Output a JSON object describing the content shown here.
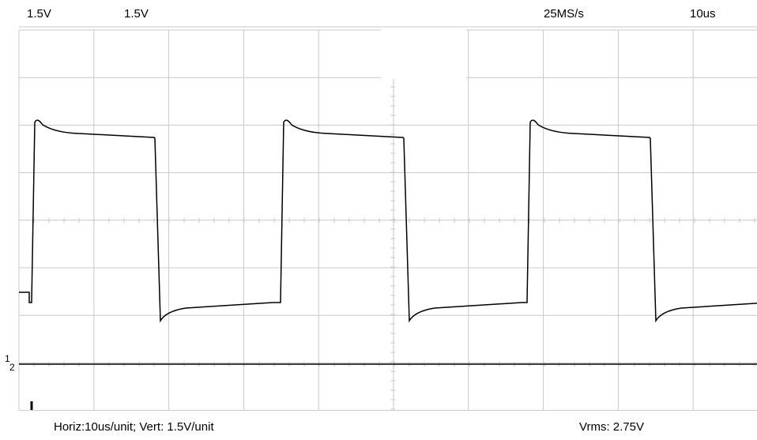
{
  "header": {
    "ch1_scale": "1.5V",
    "ch2_scale": "1.5V",
    "sample_rate": "25MS/s",
    "timebase": "10us"
  },
  "channel_markers": [
    "1",
    "2"
  ],
  "footer": {
    "scale_info": "Horiz:10us/unit; Vert: 1.5V/unit",
    "measurement": "Vrms: 2.75V"
  }
}
